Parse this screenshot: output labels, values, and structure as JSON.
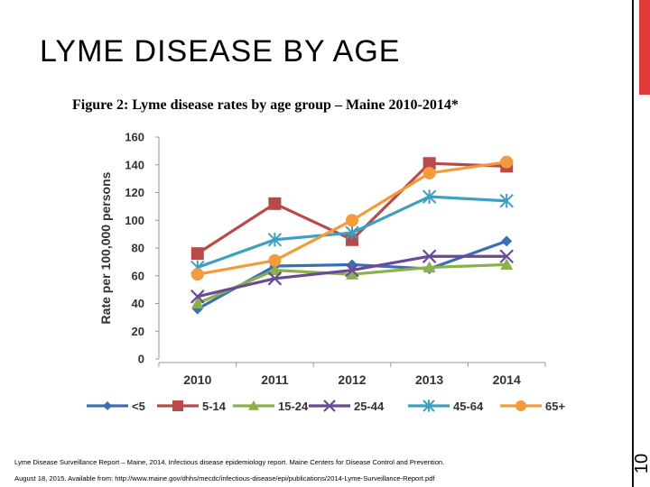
{
  "slide": {
    "title": "LYME DISEASE BY AGE",
    "slide_number": "10",
    "accent_color": "#e03a3a",
    "reference_line1": "Lyme Disease Surveillance Report – Maine, 2014. Infectious disease epidemiology report. Maine Centers for Disease Control and Prevention.",
    "reference_line2": "August 18, 2015. Available from: http://www.maine.gov/dhhs/mecdc/infectious-disease/epi/publications/2014-Lyme-Surveillance-Report.pdf"
  },
  "chart_data": {
    "type": "line",
    "title": "Figure 2: Lyme disease rates by age group – Maine 2010-2014*",
    "xlabel": "",
    "ylabel": "Rate per 100,000 persons",
    "categories": [
      "2010",
      "2011",
      "2012",
      "2013",
      "2014"
    ],
    "ylim": [
      0,
      160
    ],
    "yticks": [
      "0",
      "20",
      "40",
      "60",
      "80",
      "100",
      "120",
      "140",
      "160"
    ],
    "grid": false,
    "legend_position": "bottom",
    "series": [
      {
        "name": "<5",
        "values": [
          36,
          67,
          68,
          65,
          85
        ],
        "color": "#3c6eb4",
        "marker": "diamond"
      },
      {
        "name": "5-14",
        "values": [
          76,
          112,
          86,
          141,
          139
        ],
        "color": "#b84a4a",
        "marker": "square"
      },
      {
        "name": "15-24",
        "values": [
          40,
          64,
          61,
          66,
          68
        ],
        "color": "#8cb04a",
        "marker": "triangle"
      },
      {
        "name": "25-44",
        "values": [
          45,
          58,
          64,
          74,
          74
        ],
        "color": "#6a4a96",
        "marker": "x"
      },
      {
        "name": "45-64",
        "values": [
          66,
          86,
          91,
          117,
          114
        ],
        "color": "#3ea0c0",
        "marker": "star"
      },
      {
        "name": "65+",
        "values": [
          61,
          71,
          100,
          134,
          142
        ],
        "color": "#f39a3d",
        "marker": "circle"
      }
    ]
  }
}
